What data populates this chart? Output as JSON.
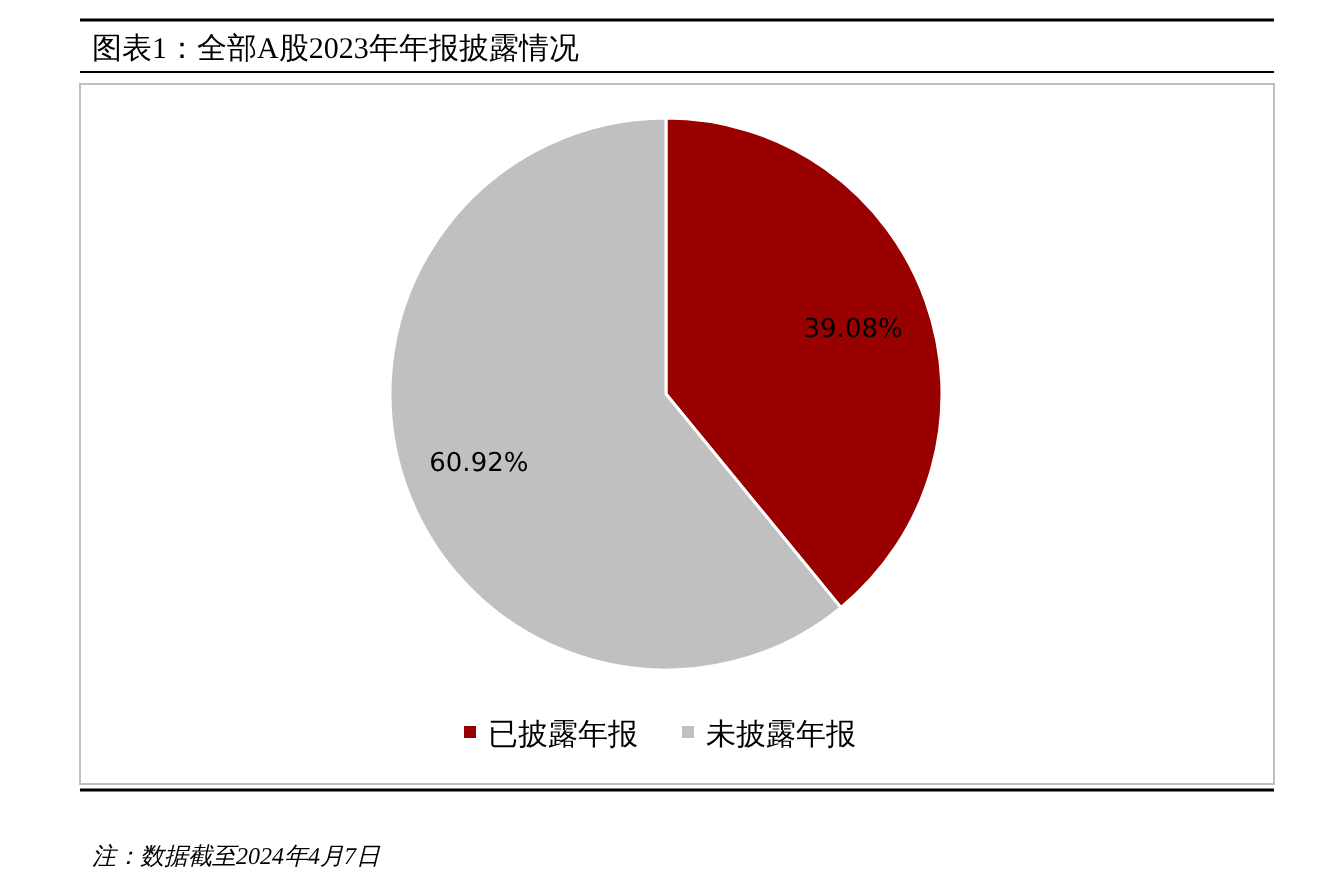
{
  "chart_data": {
    "type": "pie",
    "title": "图表1：全部A股2023年年报披露情况",
    "categories": [
      "已披露年报",
      "未披露年报"
    ],
    "values": [
      39.08,
      60.92
    ],
    "colors": [
      "#990000",
      "#c0c0c0"
    ],
    "value_labels": [
      "39.08%",
      "60.92%"
    ],
    "legend": "bottom",
    "annotations": [
      "注：数据截至2024年4月7日"
    ]
  }
}
